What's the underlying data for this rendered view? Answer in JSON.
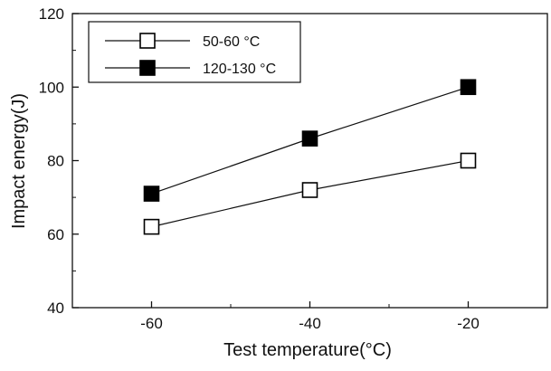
{
  "chart_data": {
    "type": "line",
    "title": "",
    "xlabel": "Test temperature(°C)",
    "ylabel": "Impact energy(J)",
    "x": [
      -60,
      -40,
      -20
    ],
    "xlim": [
      -70,
      -10
    ],
    "ylim": [
      40,
      120
    ],
    "xticks": [
      "-60",
      "-40",
      "-20"
    ],
    "yticks": [
      "40",
      "60",
      "80",
      "100",
      "120"
    ],
    "grid": false,
    "legend_position": "top-left",
    "series": [
      {
        "name": "50-60 °C",
        "marker": "open-square",
        "values": [
          62,
          72,
          80
        ]
      },
      {
        "name": "120-130 °C",
        "marker": "filled-square",
        "values": [
          71,
          86,
          100
        ]
      }
    ]
  }
}
